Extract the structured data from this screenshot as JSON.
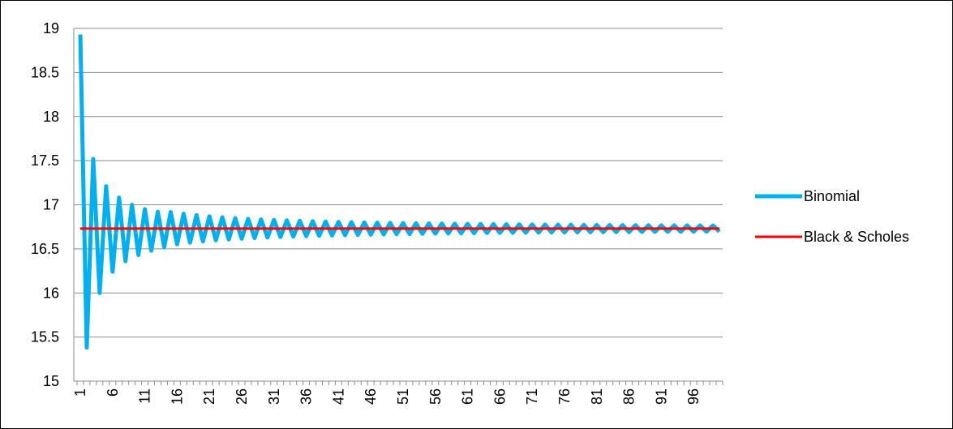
{
  "chart_data": {
    "type": "line",
    "title": "",
    "xlabel": "",
    "ylabel": "",
    "x_start": 1,
    "x_end": 100,
    "x_tick_labels": [
      "1",
      "6",
      "11",
      "16",
      "21",
      "26",
      "31",
      "36",
      "41",
      "46",
      "51",
      "56",
      "61",
      "66",
      "71",
      "76",
      "81",
      "86",
      "91",
      "96"
    ],
    "y_tick_labels": [
      "15",
      "15.5",
      "16",
      "16.5",
      "17",
      "17.5",
      "18",
      "18.5",
      "19"
    ],
    "ylim": [
      15,
      19
    ],
    "grid": true,
    "legend_position": "right",
    "series": [
      {
        "name": "Binomial",
        "color": "#00B0F0",
        "model": "oscillating-convergence",
        "first_values": [
          18.93,
          15.38,
          17.52,
          16.0,
          17.21,
          16.24,
          17.08,
          16.36,
          17.0,
          16.43,
          16.95,
          16.48,
          16.92,
          16.52
        ],
        "converges_to": 16.73
      },
      {
        "name": "Black & Scholes",
        "color": "#FF0000",
        "constant_value": 16.73
      }
    ]
  }
}
